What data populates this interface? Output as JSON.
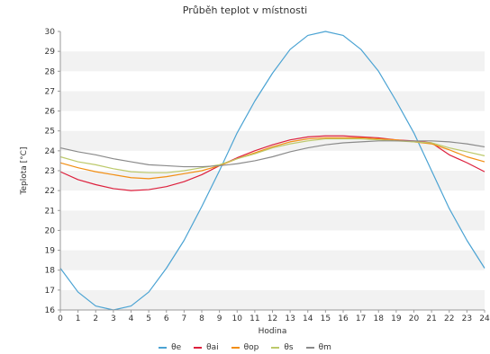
{
  "chart_data": {
    "type": "line",
    "title": "Průběh teplot v místnosti",
    "xlabel": "Hodina",
    "ylabel": "Teplota [°C]",
    "xlim": [
      0,
      24
    ],
    "ylim": [
      16,
      30
    ],
    "grid": "horizontal alternating bands",
    "legend_position": "bottom-center",
    "x": [
      0,
      1,
      2,
      3,
      4,
      5,
      6,
      7,
      8,
      9,
      10,
      11,
      12,
      13,
      14,
      15,
      16,
      17,
      18,
      19,
      20,
      21,
      22,
      23,
      24
    ],
    "x_ticks": [
      "0",
      "1",
      "2",
      "3",
      "4",
      "5",
      "6",
      "7",
      "8",
      "9",
      "10",
      "11",
      "12",
      "13",
      "14",
      "15",
      "16",
      "17",
      "18",
      "19",
      "20",
      "21",
      "22",
      "23",
      "24"
    ],
    "y_ticks": [
      "16",
      "17",
      "18",
      "19",
      "20",
      "21",
      "22",
      "23",
      "24",
      "25",
      "26",
      "27",
      "28",
      "29",
      "30"
    ],
    "series": [
      {
        "name": "θe",
        "color": "#4ba3d3",
        "values": [
          18.1,
          16.9,
          16.2,
          16.0,
          16.2,
          16.9,
          18.1,
          19.5,
          21.2,
          23.0,
          24.9,
          26.5,
          27.9,
          29.1,
          29.8,
          30.0,
          29.8,
          29.1,
          28.0,
          26.5,
          24.9,
          23.0,
          21.1,
          19.5,
          18.1
        ]
      },
      {
        "name": "θai",
        "color": "#dd1f3c",
        "values": [
          22.95,
          22.55,
          22.3,
          22.1,
          22.0,
          22.05,
          22.2,
          22.45,
          22.8,
          23.25,
          23.65,
          24.0,
          24.3,
          24.55,
          24.7,
          24.75,
          24.75,
          24.7,
          24.65,
          24.55,
          24.5,
          24.4,
          23.8,
          23.4,
          22.95
        ]
      },
      {
        "name": "θop",
        "color": "#f28e12",
        "values": [
          23.4,
          23.15,
          22.95,
          22.8,
          22.65,
          22.6,
          22.7,
          22.85,
          23.0,
          23.25,
          23.6,
          23.9,
          24.2,
          24.45,
          24.6,
          24.65,
          24.65,
          24.65,
          24.6,
          24.55,
          24.45,
          24.35,
          24.05,
          23.7,
          23.45
        ]
      },
      {
        "name": "θs",
        "color": "#bcc96a",
        "values": [
          23.7,
          23.45,
          23.3,
          23.1,
          22.95,
          22.9,
          22.9,
          23.0,
          23.15,
          23.3,
          23.6,
          23.85,
          24.15,
          24.35,
          24.5,
          24.6,
          24.6,
          24.6,
          24.55,
          24.5,
          24.45,
          24.4,
          24.15,
          23.95,
          23.75
        ]
      },
      {
        "name": "θm",
        "color": "#8a8a8a",
        "values": [
          24.15,
          23.95,
          23.8,
          23.6,
          23.45,
          23.3,
          23.25,
          23.2,
          23.2,
          23.25,
          23.35,
          23.5,
          23.7,
          23.95,
          24.15,
          24.3,
          24.4,
          24.45,
          24.5,
          24.5,
          24.5,
          24.5,
          24.45,
          24.35,
          24.2
        ]
      }
    ]
  }
}
